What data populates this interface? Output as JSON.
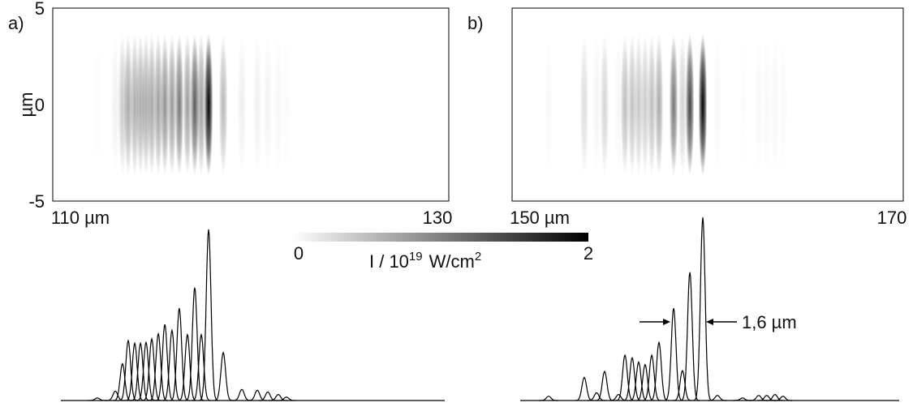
{
  "chart_data": [
    {
      "type": "heatmap",
      "panel": "a)",
      "xlim": [
        110,
        130
      ],
      "xticks": [
        {
          "value": 110,
          "label": "110 µm"
        },
        130
      ],
      "ylim": [
        -5,
        5
      ],
      "yticks": [
        -5,
        0,
        5
      ],
      "ylabel": "µm",
      "x": [
        112.25,
        113.16,
        113.52,
        113.81,
        114.14,
        114.43,
        114.71,
        115.0,
        115.33,
        115.66,
        116.02,
        116.39,
        116.8,
        117.17,
        117.5,
        117.87,
        118.61,
        119.55,
        120.33,
        120.86,
        121.39,
        121.8
      ],
      "values": [
        0.03,
        0.11,
        0.43,
        0.7,
        0.67,
        0.67,
        0.68,
        0.72,
        0.78,
        0.89,
        0.82,
        1.08,
        0.77,
        1.32,
        0.77,
        2.0,
        0.56,
        0.13,
        0.12,
        0.1,
        0.07,
        0.04
      ]
    },
    {
      "type": "heatmap",
      "panel": "b)",
      "xlim": [
        150,
        170
      ],
      "xticks": [
        {
          "value": 150,
          "label": "150 µm"
        },
        170
      ],
      "ylim": [
        -5,
        5
      ],
      "annotation": "1,6 µm",
      "x": [
        151.87,
        153.69,
        154.32,
        154.73,
        155.44,
        155.77,
        156.14,
        156.47,
        156.8,
        157.14,
        157.51,
        158.26,
        158.71,
        159.09,
        159.75,
        160.5,
        161.78,
        162.61,
        163.02,
        163.44,
        163.85
      ],
      "values": [
        0.05,
        0.27,
        0.09,
        0.34,
        0.07,
        0.53,
        0.5,
        0.45,
        0.42,
        0.53,
        0.68,
        1.08,
        0.35,
        1.5,
        2.14,
        0.06,
        0.03,
        0.06,
        0.06,
        0.07,
        0.05
      ]
    }
  ],
  "colorbar": {
    "lim": [
      0,
      2
    ],
    "ticks": [
      0,
      2
    ],
    "label": [
      "I / 10",
      "19",
      "W/cm",
      "2"
    ]
  }
}
